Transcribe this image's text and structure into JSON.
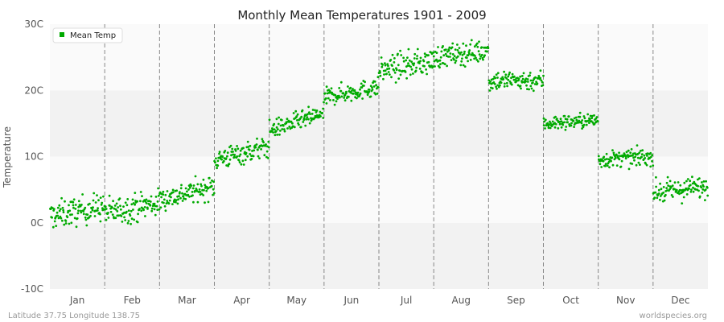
{
  "footer": {
    "location": "Latitude 37.75 Longitude 138.75",
    "source": "worldspecies.org"
  },
  "colors": {
    "series": "#00aa00",
    "band_light": "#fafafa",
    "band_dark": "#f2f2f2",
    "divider": "#888888"
  },
  "chart_data": {
    "type": "scatter",
    "title": "Monthly Mean Temperatures 1901 - 2009",
    "xlabel": "",
    "ylabel": "Temperature",
    "ylim": [
      -10,
      30
    ],
    "yticks": [
      {
        "value": -10,
        "label": "-10C"
      },
      {
        "value": 0,
        "label": "0C"
      },
      {
        "value": 10,
        "label": "10C"
      },
      {
        "value": 20,
        "label": "20C"
      },
      {
        "value": 30,
        "label": "30C"
      }
    ],
    "categories": [
      "Jan",
      "Feb",
      "Mar",
      "Apr",
      "May",
      "Jun",
      "Jul",
      "Aug",
      "Sep",
      "Oct",
      "Nov",
      "Dec"
    ],
    "grid": true,
    "legend_position": "top-left",
    "series": [
      {
        "name": "Mean Temp",
        "points_per_month": 109,
        "monthly_start": [
          1.0,
          1.5,
          3.5,
          9.5,
          14.0,
          19.0,
          23.0,
          25.0,
          21.5,
          15.0,
          9.5,
          4.5
        ],
        "monthly_end": [
          2.5,
          3.0,
          5.5,
          11.5,
          16.5,
          20.5,
          24.5,
          26.0,
          21.5,
          15.5,
          10.0,
          5.5
        ],
        "monthly_spread": [
          1.5,
          1.5,
          1.2,
          1.2,
          1.0,
          1.0,
          1.4,
          1.2,
          1.1,
          0.8,
          0.9,
          1.2
        ]
      }
    ]
  }
}
